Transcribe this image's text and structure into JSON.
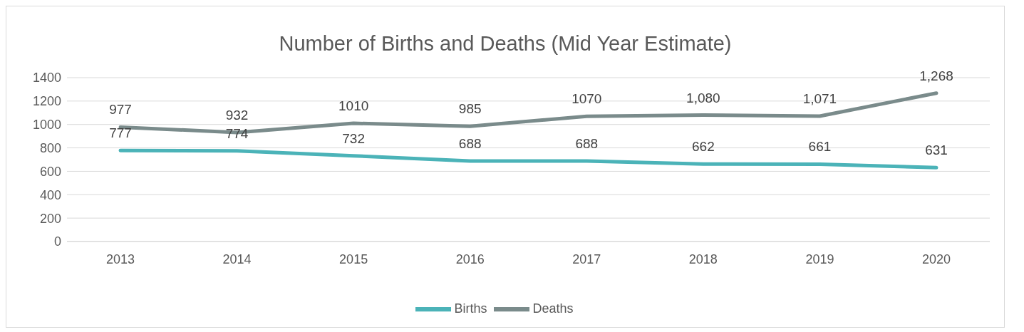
{
  "chart_data": {
    "type": "line",
    "title": "Number of Births and Deaths (Mid Year Estimate)",
    "categories": [
      "2013",
      "2014",
      "2015",
      "2016",
      "2017",
      "2018",
      "2019",
      "2020"
    ],
    "series": [
      {
        "name": "Births",
        "color": "#4bb3b8",
        "values": [
          777,
          774,
          732,
          688,
          688,
          662,
          661,
          631
        ],
        "value_labels": [
          "777",
          "774",
          "732",
          "688",
          "688",
          "662",
          "661",
          "631"
        ]
      },
      {
        "name": "Deaths",
        "color": "#7a8b8b",
        "values": [
          977,
          932,
          1010,
          985,
          1070,
          1080,
          1071,
          1268
        ],
        "value_labels": [
          "977",
          "932",
          "1010",
          "985",
          "1070",
          "1,080",
          "1,071",
          "1,268"
        ]
      }
    ],
    "ylim": [
      0,
      1400
    ],
    "yticks": [
      0,
      200,
      400,
      600,
      800,
      1000,
      1200,
      1400
    ],
    "grid": "y",
    "legend": "bottom",
    "marker": "none",
    "line_style": "solid"
  }
}
